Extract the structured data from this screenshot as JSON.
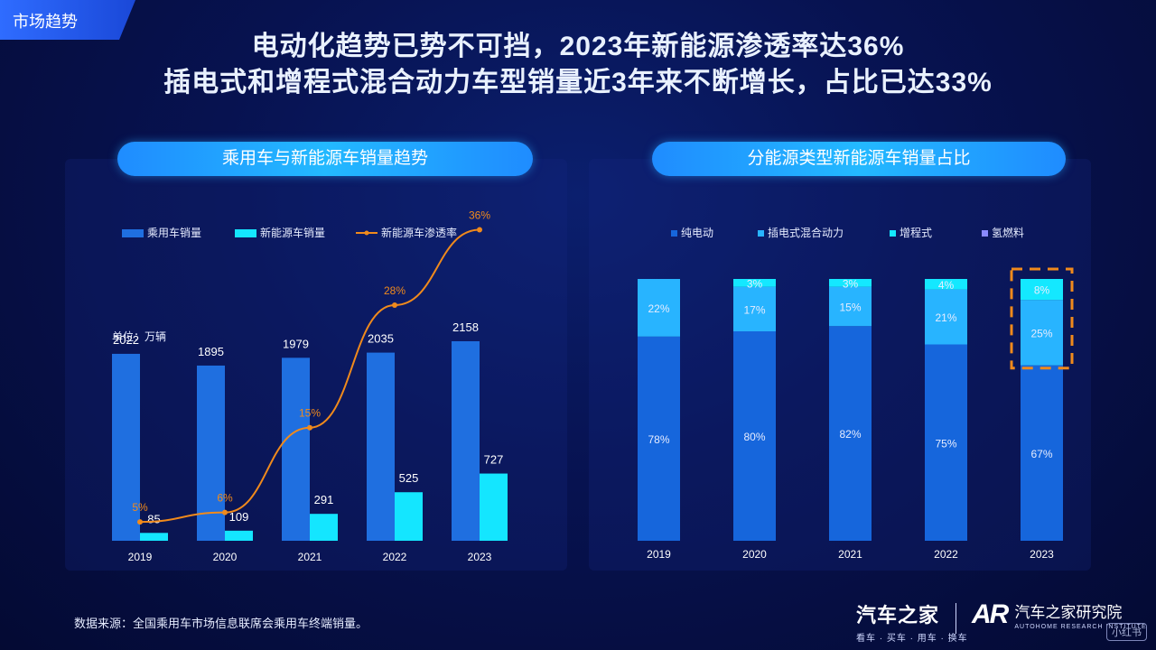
{
  "tag": "市场趋势",
  "title_line1": "电动化趋势已势不可挡，2023年新能源渗透率达36%",
  "title_line2": "插电式和增程式混合动力车型销量近3年来不断增长，占比已达33%",
  "left_panel_title": "乘用车与新能源车销量趋势",
  "right_panel_title": "分能源类型新能源车销量占比",
  "source": "数据来源：全国乘用车市场信息联席会乘用车终端销量。",
  "logo1": {
    "name": "汽车之家",
    "slogan": "看车 · 买车 · 用车 · 换车"
  },
  "logo2": {
    "mark": "AR",
    "name": "汽车之家研究院",
    "sub": "AUTOHOME RESEARCH INSTITUTE"
  },
  "watermark": "小红书",
  "colors": {
    "bar_total": "#1f6fe0",
    "bar_nev": "#14e6ff",
    "line": "#f08a1c",
    "bev": "#1666dc",
    "phev": "#28b4ff",
    "erev": "#14e8ff",
    "fcev": "#8a8aff"
  },
  "chart_data": [
    {
      "type": "bar",
      "title": "乘用车与新能源车销量趋势",
      "unit_label": "单位：万辆",
      "categories": [
        "2019",
        "2020",
        "2021",
        "2022",
        "2023"
      ],
      "series": [
        {
          "name": "乘用车销量",
          "type": "bar",
          "values": [
            2022,
            1895,
            1979,
            2035,
            2158
          ],
          "labels": [
            "2022",
            "1895",
            "1979",
            "2035",
            "2158"
          ]
        },
        {
          "name": "新能源车销量",
          "type": "bar",
          "values": [
            85,
            109,
            291,
            525,
            727
          ],
          "labels": [
            "85",
            "109",
            "291",
            "525",
            "727"
          ]
        },
        {
          "name": "新能源车渗透率",
          "type": "line",
          "values": [
            5,
            6,
            15,
            28,
            36
          ],
          "labels": [
            "5%",
            "6%",
            "15%",
            "28%",
            "36%"
          ]
        }
      ],
      "legend": "top-left"
    },
    {
      "type": "bar",
      "stacked": true,
      "title": "分能源类型新能源车销量占比",
      "categories": [
        "2019",
        "2020",
        "2021",
        "2022",
        "2023"
      ],
      "series": [
        {
          "name": "纯电动",
          "values": [
            78,
            80,
            82,
            75,
            67
          ],
          "labels": [
            "78%",
            "80%",
            "82%",
            "75%",
            "67%"
          ]
        },
        {
          "name": "插电式混合动力",
          "values": [
            22,
            17,
            15,
            21,
            25
          ],
          "labels": [
            "22%",
            "17%",
            "15%",
            "21%",
            "25%"
          ]
        },
        {
          "name": "增程式",
          "values": [
            0,
            3,
            3,
            4,
            8
          ],
          "labels": [
            "",
            "3%",
            "3%",
            "4%",
            "8%"
          ]
        },
        {
          "name": "氢燃料",
          "values": [
            0,
            0,
            0,
            0,
            0
          ],
          "labels": [
            "",
            "",
            "",
            "",
            ""
          ]
        }
      ],
      "legend": "top",
      "highlight": "2023"
    }
  ]
}
